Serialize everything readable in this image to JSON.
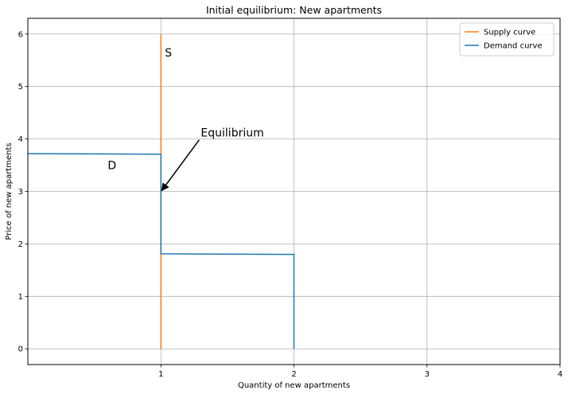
{
  "chart_data": {
    "type": "line",
    "title": "Initial equilibrium: New apartments",
    "xlabel": "Quantity of new apartments",
    "ylabel": "Price of new apartments",
    "xlim": [
      0,
      4
    ],
    "ylim": [
      -0.3,
      6.3
    ],
    "xticks": [
      1,
      2,
      3,
      4
    ],
    "yticks": [
      0,
      1,
      2,
      3,
      4,
      5,
      6
    ],
    "grid": true,
    "legend_position": "top-right",
    "series": [
      {
        "name": "Supply curve",
        "color": "#ff7f0e",
        "x": [
          1,
          1
        ],
        "y": [
          0,
          6
        ]
      },
      {
        "name": "Demand curve",
        "color": "#1f77b4",
        "x": [
          0,
          1,
          1,
          2,
          2
        ],
        "y": [
          3.72,
          3.71,
          1.81,
          1.8,
          0
        ]
      }
    ],
    "annotations": [
      {
        "text": "S",
        "x": 1.03,
        "y": 5.65
      },
      {
        "text": "D",
        "x": 0.6,
        "y": 3.5
      },
      {
        "text": "Equilibrium",
        "x": 1.3,
        "y": 4.12,
        "arrow_to": [
          1,
          3
        ]
      }
    ]
  }
}
